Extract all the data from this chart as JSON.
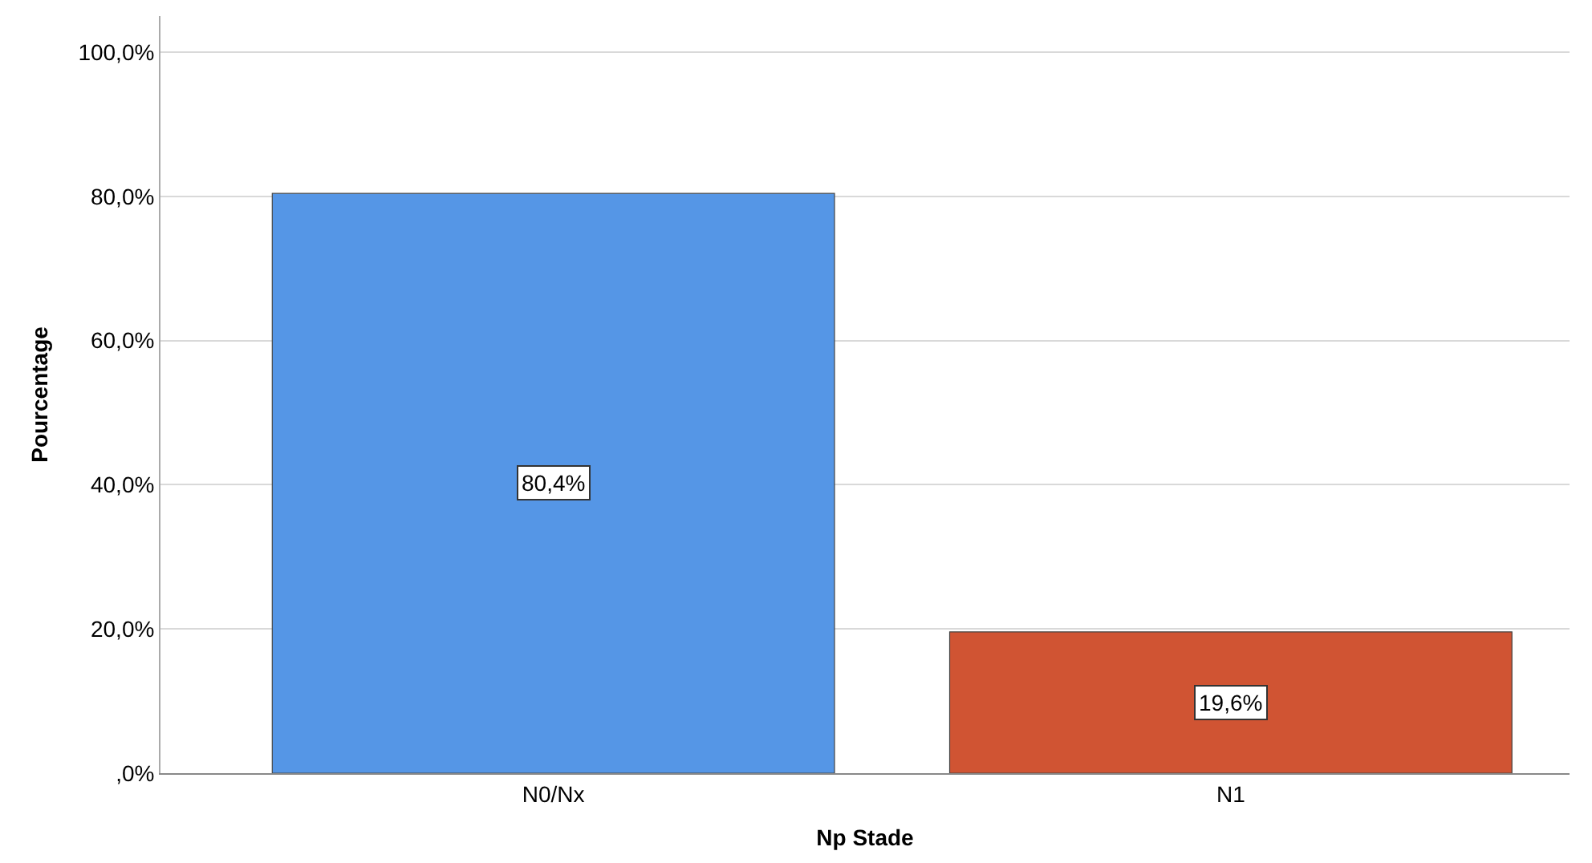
{
  "chart_data": {
    "type": "bar",
    "xlabel": "Np Stade",
    "ylabel": "Pourcentage",
    "categories": [
      "N0/Nx",
      "N1"
    ],
    "values": [
      80.4,
      19.6
    ],
    "colors": [
      "#5596e6",
      "#d05433"
    ],
    "value_labels": [
      "80,4%",
      "19,6%"
    ],
    "ylim": [
      0,
      105
    ],
    "yticks": [
      {
        "value": 0,
        "label": ",0%"
      },
      {
        "value": 20,
        "label": "20,0%"
      },
      {
        "value": 40,
        "label": "40,0%"
      },
      {
        "value": 60,
        "label": "60,0%"
      },
      {
        "value": 80,
        "label": "80,0%"
      },
      {
        "value": 100,
        "label": "100,0%"
      }
    ],
    "grid": "y",
    "legend": false
  }
}
